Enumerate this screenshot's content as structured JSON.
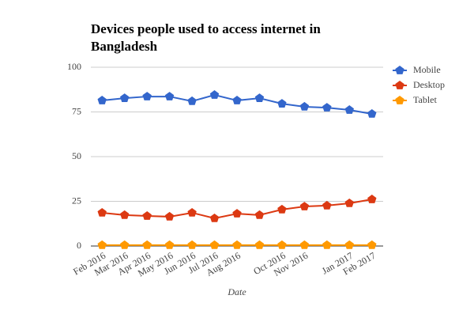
{
  "chart_data": {
    "type": "line",
    "title": [
      "Devices people used to access internet in",
      "Bangladesh"
    ],
    "x_label": "Date",
    "categories": [
      "Feb 2016",
      "Mar 2016",
      "Apr 2016",
      "May 2016",
      "Jun 2016",
      "Jul 2016",
      "Aug 2016",
      null,
      "Oct 2016",
      "Nov 2016",
      null,
      "Jan 2017",
      "Feb 2017"
    ],
    "series": [
      {
        "name": "Mobile",
        "color": "#3366cc",
        "values": [
          81.4,
          82.7,
          83.6,
          83.6,
          81,
          84.5,
          81.4,
          82.7,
          79.6,
          77.9,
          77.4,
          76.1,
          73.9
        ]
      },
      {
        "name": "Desktop",
        "color": "#dc3912",
        "values": [
          18.6,
          17.3,
          16.8,
          16.4,
          18.6,
          15.5,
          18.1,
          17.3,
          20.4,
          22.1,
          22.6,
          23.9,
          26.1
        ]
      },
      {
        "name": "Tablet",
        "color": "#ff9900",
        "values": [
          0.5,
          0.5,
          0.5,
          0.5,
          0.5,
          0.5,
          0.5,
          0.5,
          0.5,
          0.5,
          0.5,
          0.5,
          0.5
        ]
      }
    ],
    "ylim": [
      0,
      100
    ],
    "yticks": [
      0,
      25,
      50,
      75,
      100
    ],
    "grid": true,
    "legend": "right"
  }
}
